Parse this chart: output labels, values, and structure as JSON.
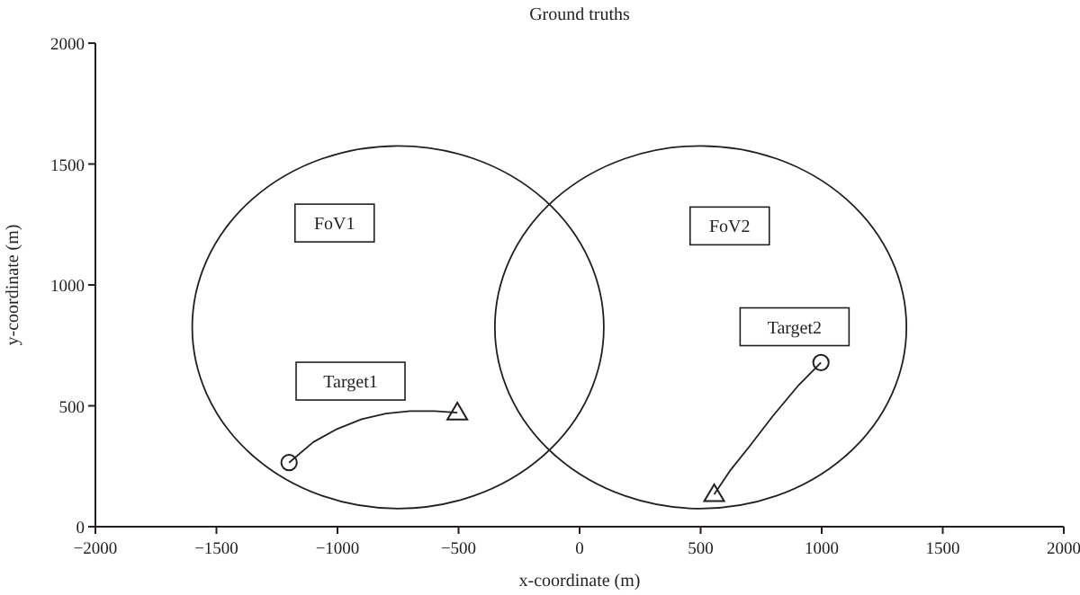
{
  "chart_data": {
    "type": "scatter",
    "title": "Ground truths",
    "xlabel": "x-coordinate (m)",
    "ylabel": "y-coordinate (m)",
    "xlim": [
      -2000,
      2000
    ],
    "ylim": [
      0,
      2000
    ],
    "xticks": [
      -2000,
      -1500,
      -1000,
      -500,
      0,
      500,
      1000,
      1500,
      2000
    ],
    "yticks": [
      0,
      500,
      1000,
      1500,
      2000
    ],
    "grid": false,
    "series": [
      {
        "type": "line",
        "color": "#231f20",
        "x": [
          -1200,
          -1100,
          -1000,
          -900,
          -800,
          -700,
          -600,
          -505
        ],
        "values": [
          265,
          350,
          405,
          445,
          468,
          478,
          478,
          472
        ]
      },
      {
        "type": "line",
        "color": "#231f20",
        "x": [
          997,
          900,
          800,
          700,
          620,
          556
        ],
        "values": [
          679,
          580,
          460,
          330,
          230,
          134
        ]
      },
      {
        "color": "#231f20",
        "marker": "circle",
        "x": [
          -1200,
          997
        ],
        "values": [
          265,
          679
        ]
      },
      {
        "color": "#231f20",
        "marker": "triangle",
        "x": [
          -505,
          556
        ],
        "values": [
          472,
          134
        ]
      }
    ],
    "annotations": [
      "FoV1",
      "FoV2",
      "Target1",
      "Target2"
    ]
  }
}
